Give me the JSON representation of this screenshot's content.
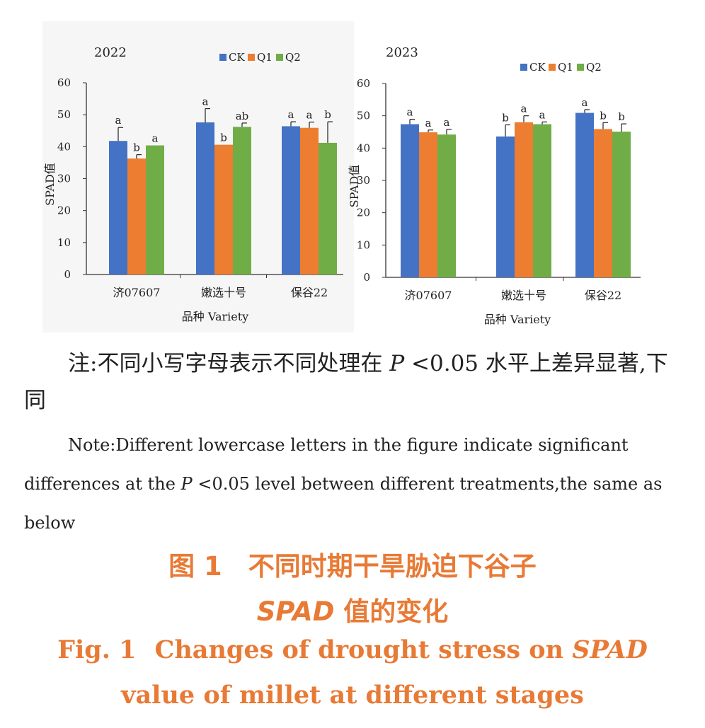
{
  "chart_data": [
    {
      "type": "bar",
      "title": "2022",
      "categories": [
        "济07607",
        "嫩选十号",
        "保谷22"
      ],
      "series": [
        {
          "name": "CK",
          "color": "#4472c4",
          "values": [
            41.8,
            47.6,
            46.4
          ],
          "errors": [
            4.2,
            4.3,
            1.4
          ],
          "letters": [
            "a",
            "a",
            "a"
          ]
        },
        {
          "name": "Q1",
          "color": "#ed7d31",
          "values": [
            36.3,
            40.6,
            45.9
          ],
          "errors": [
            1.2,
            0.0,
            1.8
          ],
          "letters": [
            "b",
            "b",
            "a"
          ]
        },
        {
          "name": "Q2",
          "color": "#70ad47",
          "values": [
            40.4,
            46.2,
            41.2
          ],
          "errors": [
            0.0,
            1.2,
            6.6
          ],
          "letters": [
            "a",
            "ab",
            "b"
          ]
        }
      ],
      "ylabel": "SPAD值",
      "xlabel": "品种 Variety",
      "ylim": [
        0,
        60
      ],
      "yticks": [
        "0",
        "10",
        "20",
        "30",
        "40",
        "50",
        "60"
      ],
      "legend": "top-right",
      "grid": false
    },
    {
      "type": "bar",
      "title": "2023",
      "categories": [
        "济07607",
        "嫩选十号",
        "保谷22"
      ],
      "series": [
        {
          "name": "CK",
          "color": "#4472c4",
          "values": [
            47.4,
            43.6,
            50.9
          ],
          "errors": [
            1.5,
            3.6,
            1.0
          ],
          "letters": [
            "a",
            "b",
            "a"
          ]
        },
        {
          "name": "Q1",
          "color": "#ed7d31",
          "values": [
            44.9,
            48.0,
            45.9
          ],
          "errors": [
            0.7,
            2.0,
            2.0
          ],
          "letters": [
            "a",
            "a",
            "b"
          ]
        },
        {
          "name": "Q2",
          "color": "#70ad47",
          "values": [
            44.2,
            47.4,
            45.1
          ],
          "errors": [
            1.6,
            0.7,
            2.4
          ],
          "letters": [
            "a",
            "a",
            "b"
          ]
        }
      ],
      "ylabel": "SPAD值",
      "xlabel": "品种 Variety",
      "ylim": [
        0,
        60
      ],
      "yticks": [
        "0",
        "10",
        "20",
        "30",
        "40",
        "50",
        "60"
      ],
      "legend": "top-right",
      "grid": false
    }
  ],
  "note": {
    "zh_prefix": "注:不同小写字母表示不同处理在",
    "p_symbol": "P",
    "zh_suffix": "<0.05 水平上差异显著,下同",
    "en_prefix": "Note:Different lowercase letters in the figure indicate significant differences at the",
    "en_suffix": "<0.05 level between different treatments,the same as below"
  },
  "caption": {
    "zh_line1": "图 1　不同时期干旱胁迫下谷子",
    "zh_line2_italic": "SPAD",
    "zh_line2_rest": "值的变化",
    "en_line1_prefix": "Fig. 1",
    "en_line1_text": "Changes of drought stress on",
    "en_line1_italic": "SPAD",
    "en_line2": "value of millet at different stages"
  }
}
